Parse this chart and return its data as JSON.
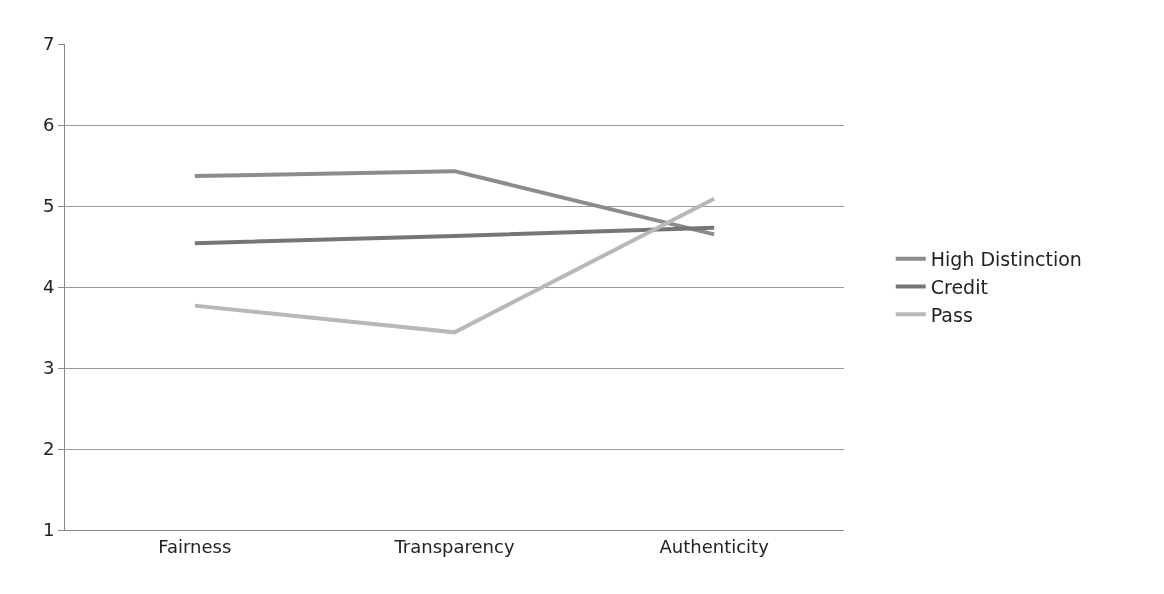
{
  "chart_data": {
    "type": "line",
    "categories": [
      "Fairness",
      "Transparency",
      "Authenticity"
    ],
    "series": [
      {
        "name": "High Distinction",
        "color": "#8c8c8c",
        "values": [
          5.37,
          5.43,
          4.65
        ]
      },
      {
        "name": "Credit",
        "color": "#767676",
        "values": [
          4.54,
          4.63,
          4.73
        ]
      },
      {
        "name": "Pass",
        "color": "#b8b8b8",
        "values": [
          3.77,
          3.44,
          5.09
        ]
      }
    ],
    "ylim": [
      1,
      7
    ],
    "yticks": [
      1,
      2,
      3,
      4,
      5,
      6,
      7
    ],
    "grid": "y",
    "legend": "right",
    "marker": "none",
    "line_style": "solid"
  }
}
